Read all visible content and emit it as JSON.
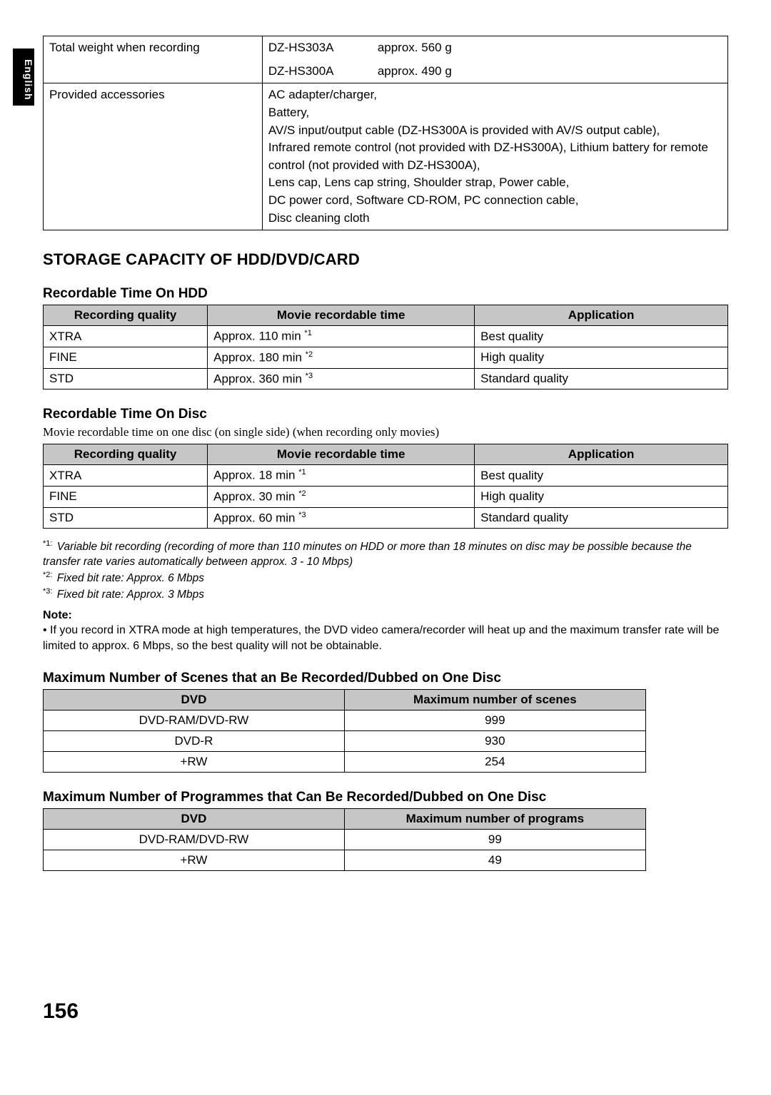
{
  "lang_tab": "English",
  "spec_rows": [
    {
      "label": "Total weight when recording",
      "lines": [
        {
          "model": "DZ-HS303A",
          "value": "approx. 560 g"
        },
        {
          "model": "DZ-HS300A",
          "value": "approx. 490 g"
        }
      ]
    },
    {
      "label": "Provided accessories",
      "text": "AC adapter/charger,\nBattery,\nAV/S input/output cable (DZ-HS300A is provided with AV/S output cable),\nInfrared remote control (not provided with DZ-HS300A), Lithium battery for remote control (not provided with DZ-HS300A),\nLens cap, Lens cap string, Shoulder strap, Power cable,\nDC power cord, Software CD-ROM, PC connection cable,\nDisc cleaning cloth"
    }
  ],
  "storage_heading": "STORAGE CAPACITY OF HDD/DVD/CARD",
  "hdd": {
    "heading": "Recordable Time On HDD",
    "headers": [
      "Recording quality",
      "Movie recordable time",
      "Application"
    ],
    "col_widths": [
      "24%",
      "39%",
      "37%"
    ],
    "header_bg": "#c0c0c0",
    "rows": [
      {
        "quality": "XTRA",
        "time": "Approx. 110 min",
        "sup": "*1",
        "app": "Best quality"
      },
      {
        "quality": "FINE",
        "time": "Approx. 180 min",
        "sup": "*2",
        "app": "High quality"
      },
      {
        "quality": "STD",
        "time": "Approx. 360 min",
        "sup": "*3",
        "app": "Standard quality"
      }
    ]
  },
  "disc": {
    "heading": "Recordable Time On Disc",
    "desc": "Movie recordable time on one disc (on single side) (when recording only movies)",
    "headers": [
      "Recording quality",
      "Movie recordable time",
      "Application"
    ],
    "col_widths": [
      "24%",
      "39%",
      "37%"
    ],
    "rows": [
      {
        "quality": "XTRA",
        "time": "Approx. 18 min",
        "sup": "*1",
        "app": "Best quality"
      },
      {
        "quality": "FINE",
        "time": "Approx. 30 min",
        "sup": "*2",
        "app": "High quality"
      },
      {
        "quality": "STD",
        "time": "Approx. 60 min",
        "sup": "*3",
        "app": "Standard quality"
      }
    ]
  },
  "footnotes": [
    {
      "marker": "*1",
      "text": "Variable bit recording (recording of more than 110 minutes on HDD or more than 18 minutes on disc may be possible because the transfer rate varies automatically between approx. 3 - 10 Mbps)"
    },
    {
      "marker": "*2",
      "text": "Fixed bit rate: Approx. 6 Mbps"
    },
    {
      "marker": "*3",
      "text": "Fixed bit rate: Approx. 3 Mbps"
    }
  ],
  "note": {
    "label": "Note:",
    "bullet": "• ",
    "text": "If you record in XTRA mode at high temperatures, the DVD video camera/recorder will heat up and the maximum transfer rate will be limited to approx. 6 Mbps, so the best quality will not be obtainable."
  },
  "scenes": {
    "heading": "Maximum Number of Scenes that an Be Recorded/Dubbed on One Disc",
    "headers": [
      "DVD",
      "Maximum number of scenes"
    ],
    "col_widths": [
      "50%",
      "50%"
    ],
    "table_width": "88%",
    "rows": [
      {
        "dvd": "DVD-RAM/DVD-RW",
        "val": "999"
      },
      {
        "dvd": "DVD-R",
        "val": "930"
      },
      {
        "dvd": "+RW",
        "val": "254"
      }
    ]
  },
  "programmes": {
    "heading": "Maximum Number of Programmes that Can Be Recorded/Dubbed on One Disc",
    "headers": [
      "DVD",
      "Maximum number of programs"
    ],
    "col_widths": [
      "50%",
      "50%"
    ],
    "table_width": "88%",
    "rows": [
      {
        "dvd": "DVD-RAM/DVD-RW",
        "val": "99"
      },
      {
        "dvd": "+RW",
        "val": "49"
      }
    ]
  },
  "page_number": "156"
}
